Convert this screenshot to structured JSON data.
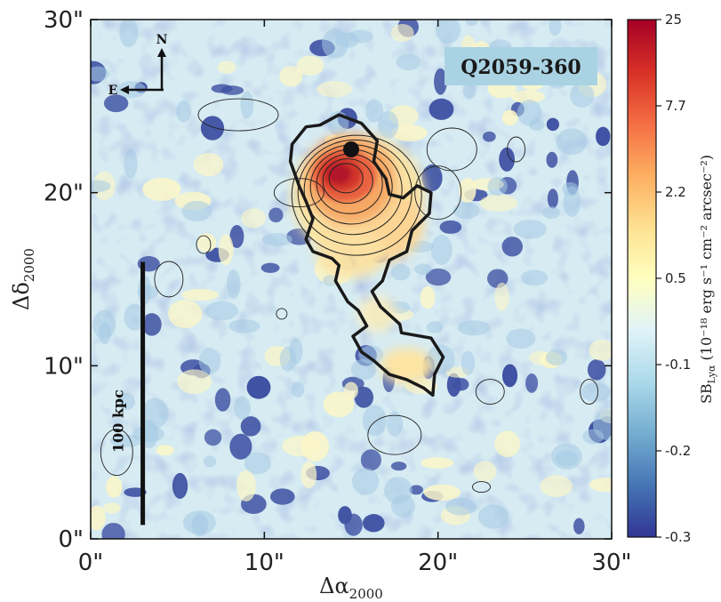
{
  "chart_data": {
    "type": "heatmap",
    "object_label": "Q2059-360",
    "xlabel": "Δα",
    "xlabel_sub": "2000",
    "ylabel": "Δδ",
    "ylabel_sub": "2000",
    "xlim": [
      0,
      30
    ],
    "ylim": [
      0,
      30
    ],
    "x_ticks": [
      {
        "value": 0,
        "label": "0\""
      },
      {
        "value": 10,
        "label": "10\""
      },
      {
        "value": 20,
        "label": "20\""
      },
      {
        "value": 30,
        "label": "30\""
      }
    ],
    "y_ticks": [
      {
        "value": 0,
        "label": "0\""
      },
      {
        "value": 10,
        "label": "10\""
      },
      {
        "value": 20,
        "label": "20\""
      },
      {
        "value": 30,
        "label": "30\""
      }
    ],
    "colorbar": {
      "title_prefix": "SB",
      "title_sub": "Lyα",
      "title_units": " (10⁻¹⁸ erg s⁻¹ cm⁻² arcsec⁻²)",
      "ticks": [
        "25",
        "7.7",
        "2.2",
        "0.5",
        "-0.1",
        "-0.2",
        "-0.3"
      ],
      "colors": [
        "#a50026",
        "#d73027",
        "#f46d43",
        "#fdae61",
        "#fee090",
        "#ffffbf",
        "#e0f3f8",
        "#abd9e9",
        "#74add1",
        "#4575b4",
        "#313695"
      ]
    },
    "compass": {
      "north": "N",
      "east": "E"
    },
    "scale_bar": {
      "label": "100 kpc",
      "y_range": [
        0.8,
        16.0
      ],
      "x": 3.0
    },
    "quasar_position": [
      15.0,
      22.5
    ],
    "emission_peak": [
      14.6,
      21.0
    ],
    "companion_blob": [
      18.2,
      10.0
    ],
    "contour_levels": 7
  }
}
